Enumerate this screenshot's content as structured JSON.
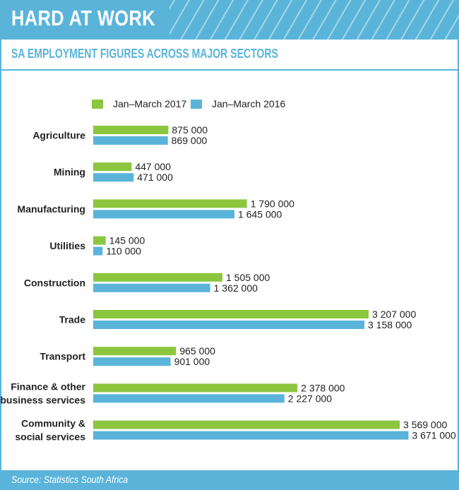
{
  "header": {
    "title": "HARD AT WORK"
  },
  "subtitle": "SA EMPLOYMENT FIGURES ACROSS MAJOR SECTORS",
  "footer": {
    "source": "Source: Statistics South Africa"
  },
  "colors": {
    "accent": "#5ab4d9",
    "series_2017": "#8cc63f",
    "series_2016": "#5ab4d9"
  },
  "chart_data": {
    "type": "bar",
    "orientation": "horizontal",
    "title": "SA EMPLOYMENT FIGURES ACROSS MAJOR SECTORS",
    "legend_position": "top-left",
    "grid": false,
    "categories": [
      [
        "Agriculture"
      ],
      [
        "Mining"
      ],
      [
        "Manufacturing"
      ],
      [
        "Utilities"
      ],
      [
        "Construction"
      ],
      [
        "Trade"
      ],
      [
        "Transport"
      ],
      [
        "Finance & other",
        "business services"
      ],
      [
        "Community &",
        "social services"
      ]
    ],
    "series": [
      {
        "name": "Jan–March 2017",
        "color": "#8cc63f",
        "values": [
          875000,
          447000,
          1790000,
          145000,
          1505000,
          3207000,
          965000,
          2378000,
          3569000
        ],
        "labels": [
          "875 000",
          "447 000",
          "1 790 000",
          "145 000",
          "1 505 000",
          "3 207 000",
          "965 000",
          "2 378 000",
          "3 569 000"
        ]
      },
      {
        "name": "Jan–March 2016",
        "color": "#5ab4d9",
        "values": [
          869000,
          471000,
          1645000,
          110000,
          1362000,
          3158000,
          901000,
          2227000,
          3671000
        ],
        "labels": [
          "869 000",
          "471 000",
          "1 645 000",
          "110 000",
          "1 362 000",
          "3 158 000",
          "901 000",
          "2 227 000",
          "3 671 000"
        ]
      }
    ]
  }
}
